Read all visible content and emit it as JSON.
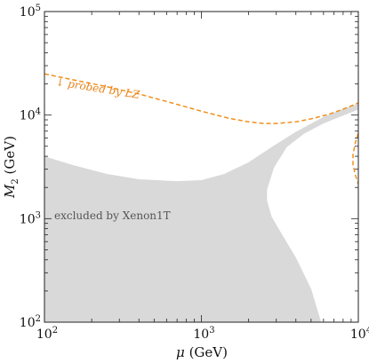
{
  "chart_data": {
    "type": "area",
    "scale": {
      "x": "log",
      "y": "log"
    },
    "xlim": [
      100,
      10000
    ],
    "ylim": [
      100,
      100000
    ],
    "xlabel": {
      "symbol": "μ",
      "unit": "(GeV)"
    },
    "ylabel": {
      "symbol": "M",
      "subscript": "2",
      "unit": "(GeV)"
    },
    "x_ticks": [
      {
        "base": "10",
        "exp": "2",
        "value": 100
      },
      {
        "base": "10",
        "exp": "3",
        "value": 1000
      },
      {
        "base": "10",
        "exp": "4",
        "value": 10000
      }
    ],
    "y_ticks": [
      {
        "base": "10",
        "exp": "2",
        "value": 100
      },
      {
        "base": "10",
        "exp": "3",
        "value": 1000
      },
      {
        "base": "10",
        "exp": "4",
        "value": 10000
      },
      {
        "base": "10",
        "exp": "5",
        "value": 100000
      }
    ],
    "grid": false,
    "colors": {
      "excluded": "#d9d9d9",
      "probe": "#f0901e",
      "probe_label": "#e8831a",
      "annotation": "#555555",
      "frame": "#222222"
    },
    "excluded_region": {
      "label": "excluded by Xenon1T",
      "left_lobe": [
        [
          100,
          4000
        ],
        [
          150,
          3300
        ],
        [
          250,
          2700
        ],
        [
          400,
          2400
        ],
        [
          700,
          2300
        ],
        [
          1000,
          2350
        ],
        [
          1400,
          2700
        ],
        [
          2000,
          3500
        ],
        [
          2800,
          4900
        ],
        [
          4000,
          6900
        ],
        [
          6000,
          9600
        ],
        [
          8000,
          11500
        ],
        [
          10000,
          12900
        ],
        [
          10000,
          11300
        ],
        [
          8000,
          9900
        ],
        [
          6000,
          8300
        ],
        [
          4500,
          6600
        ],
        [
          3500,
          4900
        ],
        [
          2900,
          3100
        ],
        [
          2620,
          1900
        ],
        [
          2620,
          1500
        ],
        [
          2800,
          1050
        ],
        [
          3200,
          740
        ],
        [
          4000,
          420
        ],
        [
          5000,
          210
        ],
        [
          5800,
          100
        ],
        [
          100,
          100
        ]
      ]
    },
    "probe_line": {
      "label": "↓ probed by LZ",
      "points": [
        [
          100,
          25000
        ],
        [
          150,
          22000
        ],
        [
          250,
          18800
        ],
        [
          400,
          16000
        ],
        [
          700,
          12700
        ],
        [
          1000,
          10900
        ],
        [
          1500,
          9300
        ],
        [
          2000,
          8600
        ],
        [
          2500,
          8300
        ],
        [
          3000,
          8300
        ],
        [
          4000,
          8600
        ],
        [
          5000,
          9200
        ],
        [
          6500,
          10200
        ],
        [
          8000,
          11400
        ],
        [
          10000,
          13100
        ]
      ]
    },
    "probe_arc": {
      "points": [
        [
          10000,
          6700
        ],
        [
          9600,
          5500
        ],
        [
          9250,
          4200
        ],
        [
          9250,
          3300
        ],
        [
          9600,
          2600
        ],
        [
          10000,
          2150
        ]
      ]
    }
  }
}
